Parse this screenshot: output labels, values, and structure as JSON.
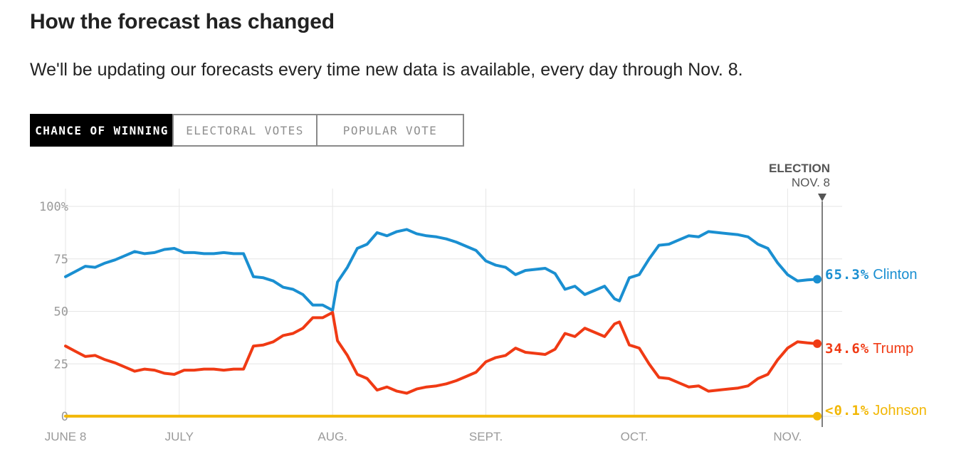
{
  "header": {
    "title": "How the forecast has changed",
    "subtitle": "We'll be updating our forecasts every time new data is available, every day through Nov. 8."
  },
  "tabs": [
    {
      "label": "CHANCE OF WINNING",
      "active": true
    },
    {
      "label": "ELECTORAL VOTES",
      "active": false
    },
    {
      "label": "POPULAR VOTE",
      "active": false
    }
  ],
  "chart_data": {
    "type": "line",
    "title": "",
    "xlabel": "",
    "ylabel": "",
    "x_range": [
      "2016-06-08",
      "2016-11-08"
    ],
    "ylim": [
      0,
      100
    ],
    "y_ticks": [
      "100%",
      "75",
      "50",
      "25",
      "0"
    ],
    "x_ticks": [
      {
        "date": "2016-06-08",
        "label": "JUNE 8"
      },
      {
        "date": "2016-07-01",
        "label": "JULY"
      },
      {
        "date": "2016-08-01",
        "label": "AUG."
      },
      {
        "date": "2016-09-01",
        "label": "SEPT."
      },
      {
        "date": "2016-10-01",
        "label": "OCT."
      },
      {
        "date": "2016-11-01",
        "label": "NOV."
      }
    ],
    "grid": true,
    "marker": {
      "date": "2016-11-08",
      "title": "ELECTION",
      "label": "NOV. 8"
    },
    "series": [
      {
        "name": "Clinton",
        "color": "#1a8fd1",
        "end_value_label": "65.3%",
        "points": [
          [
            "2016-06-08",
            66.5
          ],
          [
            "2016-06-10",
            69
          ],
          [
            "2016-06-12",
            71.5
          ],
          [
            "2016-06-14",
            71
          ],
          [
            "2016-06-16",
            73
          ],
          [
            "2016-06-18",
            74.5
          ],
          [
            "2016-06-20",
            76.5
          ],
          [
            "2016-06-22",
            78.5
          ],
          [
            "2016-06-24",
            77.5
          ],
          [
            "2016-06-26",
            78
          ],
          [
            "2016-06-28",
            79.5
          ],
          [
            "2016-06-30",
            80
          ],
          [
            "2016-07-02",
            78
          ],
          [
            "2016-07-04",
            78
          ],
          [
            "2016-07-06",
            77.5
          ],
          [
            "2016-07-08",
            77.5
          ],
          [
            "2016-07-10",
            78
          ],
          [
            "2016-07-12",
            77.5
          ],
          [
            "2016-07-14",
            77.5
          ],
          [
            "2016-07-16",
            66.5
          ],
          [
            "2016-07-18",
            66
          ],
          [
            "2016-07-20",
            64.5
          ],
          [
            "2016-07-22",
            61.5
          ],
          [
            "2016-07-24",
            60.5
          ],
          [
            "2016-07-26",
            58
          ],
          [
            "2016-07-28",
            53
          ],
          [
            "2016-07-30",
            53
          ],
          [
            "2016-08-01",
            50.5
          ],
          [
            "2016-08-02",
            64
          ],
          [
            "2016-08-04",
            71
          ],
          [
            "2016-08-06",
            80
          ],
          [
            "2016-08-08",
            82
          ],
          [
            "2016-08-10",
            87.5
          ],
          [
            "2016-08-12",
            86
          ],
          [
            "2016-08-14",
            88
          ],
          [
            "2016-08-16",
            89
          ],
          [
            "2016-08-18",
            87
          ],
          [
            "2016-08-20",
            86
          ],
          [
            "2016-08-22",
            85.5
          ],
          [
            "2016-08-24",
            84.5
          ],
          [
            "2016-08-26",
            83
          ],
          [
            "2016-08-28",
            81
          ],
          [
            "2016-08-30",
            79
          ],
          [
            "2016-09-01",
            74
          ],
          [
            "2016-09-03",
            72
          ],
          [
            "2016-09-05",
            71
          ],
          [
            "2016-09-07",
            67.5
          ],
          [
            "2016-09-09",
            69.5
          ],
          [
            "2016-09-11",
            70
          ],
          [
            "2016-09-13",
            70.5
          ],
          [
            "2016-09-15",
            68
          ],
          [
            "2016-09-17",
            60.5
          ],
          [
            "2016-09-19",
            62
          ],
          [
            "2016-09-21",
            58
          ],
          [
            "2016-09-23",
            60
          ],
          [
            "2016-09-25",
            62
          ],
          [
            "2016-09-27",
            56
          ],
          [
            "2016-09-28",
            55
          ],
          [
            "2016-09-30",
            66
          ],
          [
            "2016-10-02",
            67.5
          ],
          [
            "2016-10-04",
            75
          ],
          [
            "2016-10-06",
            81.5
          ],
          [
            "2016-10-08",
            82
          ],
          [
            "2016-10-10",
            84
          ],
          [
            "2016-10-12",
            86
          ],
          [
            "2016-10-14",
            85.5
          ],
          [
            "2016-10-16",
            88
          ],
          [
            "2016-10-18",
            87.5
          ],
          [
            "2016-10-20",
            87
          ],
          [
            "2016-10-22",
            86.5
          ],
          [
            "2016-10-24",
            85.5
          ],
          [
            "2016-10-26",
            82
          ],
          [
            "2016-10-28",
            80
          ],
          [
            "2016-10-30",
            73
          ],
          [
            "2016-11-01",
            67.5
          ],
          [
            "2016-11-03",
            64.5
          ],
          [
            "2016-11-05",
            65
          ],
          [
            "2016-11-07",
            65.3
          ]
        ]
      },
      {
        "name": "Trump",
        "color": "#f03a14",
        "end_value_label": "34.6%",
        "points": [
          [
            "2016-06-08",
            33.5
          ],
          [
            "2016-06-10",
            31
          ],
          [
            "2016-06-12",
            28.5
          ],
          [
            "2016-06-14",
            29
          ],
          [
            "2016-06-16",
            27
          ],
          [
            "2016-06-18",
            25.5
          ],
          [
            "2016-06-20",
            23.5
          ],
          [
            "2016-06-22",
            21.5
          ],
          [
            "2016-06-24",
            22.5
          ],
          [
            "2016-06-26",
            22
          ],
          [
            "2016-06-28",
            20.5
          ],
          [
            "2016-06-30",
            20
          ],
          [
            "2016-07-02",
            22
          ],
          [
            "2016-07-04",
            22
          ],
          [
            "2016-07-06",
            22.5
          ],
          [
            "2016-07-08",
            22.5
          ],
          [
            "2016-07-10",
            22
          ],
          [
            "2016-07-12",
            22.5
          ],
          [
            "2016-07-14",
            22.5
          ],
          [
            "2016-07-16",
            33.5
          ],
          [
            "2016-07-18",
            34
          ],
          [
            "2016-07-20",
            35.5
          ],
          [
            "2016-07-22",
            38.5
          ],
          [
            "2016-07-24",
            39.5
          ],
          [
            "2016-07-26",
            42
          ],
          [
            "2016-07-28",
            47
          ],
          [
            "2016-07-30",
            47
          ],
          [
            "2016-08-01",
            49.5
          ],
          [
            "2016-08-02",
            36
          ],
          [
            "2016-08-04",
            29
          ],
          [
            "2016-08-06",
            20
          ],
          [
            "2016-08-08",
            18
          ],
          [
            "2016-08-10",
            12.5
          ],
          [
            "2016-08-12",
            14
          ],
          [
            "2016-08-14",
            12
          ],
          [
            "2016-08-16",
            11
          ],
          [
            "2016-08-18",
            13
          ],
          [
            "2016-08-20",
            14
          ],
          [
            "2016-08-22",
            14.5
          ],
          [
            "2016-08-24",
            15.5
          ],
          [
            "2016-08-26",
            17
          ],
          [
            "2016-08-28",
            19
          ],
          [
            "2016-08-30",
            21
          ],
          [
            "2016-09-01",
            26
          ],
          [
            "2016-09-03",
            28
          ],
          [
            "2016-09-05",
            29
          ],
          [
            "2016-09-07",
            32.5
          ],
          [
            "2016-09-09",
            30.5
          ],
          [
            "2016-09-11",
            30
          ],
          [
            "2016-09-13",
            29.5
          ],
          [
            "2016-09-15",
            32
          ],
          [
            "2016-09-17",
            39.5
          ],
          [
            "2016-09-19",
            38
          ],
          [
            "2016-09-21",
            42
          ],
          [
            "2016-09-23",
            40
          ],
          [
            "2016-09-25",
            38
          ],
          [
            "2016-09-27",
            44
          ],
          [
            "2016-09-28",
            45
          ],
          [
            "2016-09-30",
            34
          ],
          [
            "2016-10-02",
            32.5
          ],
          [
            "2016-10-04",
            25
          ],
          [
            "2016-10-06",
            18.5
          ],
          [
            "2016-10-08",
            18
          ],
          [
            "2016-10-10",
            16
          ],
          [
            "2016-10-12",
            14
          ],
          [
            "2016-10-14",
            14.5
          ],
          [
            "2016-10-16",
            12
          ],
          [
            "2016-10-18",
            12.5
          ],
          [
            "2016-10-20",
            13
          ],
          [
            "2016-10-22",
            13.5
          ],
          [
            "2016-10-24",
            14.5
          ],
          [
            "2016-10-26",
            18
          ],
          [
            "2016-10-28",
            20
          ],
          [
            "2016-10-30",
            27
          ],
          [
            "2016-11-01",
            32.5
          ],
          [
            "2016-11-03",
            35.5
          ],
          [
            "2016-11-05",
            35
          ],
          [
            "2016-11-07",
            34.6
          ]
        ]
      },
      {
        "name": "Johnson",
        "color": "#f2b705",
        "end_value_label": "<0.1%",
        "points": [
          [
            "2016-06-08",
            0.1
          ],
          [
            "2016-11-07",
            0.1
          ]
        ]
      }
    ]
  }
}
